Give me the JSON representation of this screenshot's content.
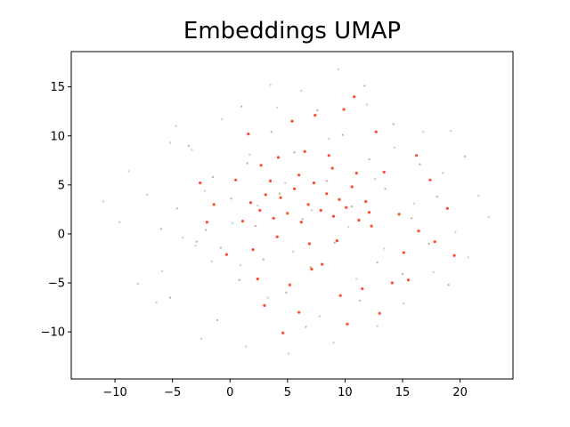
{
  "chart_data": {
    "type": "scatter",
    "title": "Embeddings UMAP",
    "xlabel": "",
    "ylabel": "",
    "xlim": [
      -13.8,
      24.6
    ],
    "ylim": [
      -14.8,
      18.6
    ],
    "xticks": [
      -10,
      -5,
      0,
      5,
      10,
      15,
      20
    ],
    "yticks": [
      -10,
      -5,
      0,
      5,
      10,
      15
    ],
    "xtick_labels": [
      "−10",
      "−5",
      "0",
      "5",
      "10",
      "15",
      "20"
    ],
    "ytick_labels": [
      "−10",
      "−5",
      "0",
      "5",
      "10",
      "15"
    ],
    "grid": false,
    "series": [
      {
        "color": "#a8c6d6",
        "points": [
          [
            -11.0,
            3.3
          ],
          [
            -9.6,
            1.2
          ],
          [
            -8.0,
            -5.1
          ],
          [
            -6.4,
            -7.0
          ],
          [
            -5.2,
            9.3
          ],
          [
            -4.1,
            -0.4
          ],
          [
            -3.3,
            8.6
          ],
          [
            -3.0,
            -1.2
          ],
          [
            -2.2,
            4.4
          ],
          [
            -1.6,
            -2.8
          ],
          [
            -0.7,
            11.7
          ],
          [
            0.2,
            1.1
          ],
          [
            0.9,
            -3.2
          ],
          [
            1.7,
            8.1
          ],
          [
            2.4,
            2.9
          ],
          [
            3.3,
            -6.5
          ],
          [
            4.1,
            12.9
          ],
          [
            4.8,
            5.2
          ],
          [
            5.5,
            -1.8
          ],
          [
            6.2,
            14.6
          ],
          [
            7.1,
            2.4
          ],
          [
            7.8,
            -8.4
          ],
          [
            8.6,
            9.7
          ],
          [
            9.4,
            16.8
          ],
          [
            10.3,
            0.7
          ],
          [
            11.0,
            -4.6
          ],
          [
            11.9,
            13.2
          ],
          [
            12.6,
            5.6
          ],
          [
            13.4,
            -1.5
          ],
          [
            14.3,
            8.8
          ],
          [
            15.1,
            -7.1
          ],
          [
            16.0,
            3.1
          ],
          [
            16.8,
            10.4
          ],
          [
            17.7,
            -3.9
          ],
          [
            18.5,
            6.2
          ],
          [
            19.6,
            0.2
          ],
          [
            20.7,
            -2.4
          ],
          [
            21.6,
            3.9
          ],
          [
            22.5,
            1.7
          ],
          [
            -7.2,
            4.0
          ],
          [
            -5.9,
            -3.8
          ],
          [
            -2.5,
            -10.7
          ],
          [
            1.4,
            -11.5
          ],
          [
            5.1,
            -12.2
          ],
          [
            9.0,
            -11.1
          ],
          [
            12.8,
            -9.4
          ],
          [
            3.5,
            15.2
          ],
          [
            -4.7,
            11.0
          ],
          [
            19.2,
            10.5
          ],
          [
            -8.8,
            6.4
          ]
        ]
      },
      {
        "color": "#b89a7c",
        "points": [
          [
            -3.6,
            9.0
          ],
          [
            -2.9,
            -0.8
          ],
          [
            -2.1,
            0.4
          ],
          [
            -1.5,
            5.8
          ],
          [
            -0.8,
            -1.4
          ],
          [
            0.1,
            3.6
          ],
          [
            0.8,
            -4.7
          ],
          [
            1.5,
            7.2
          ],
          [
            2.2,
            0.8
          ],
          [
            2.9,
            -2.6
          ],
          [
            3.6,
            10.4
          ],
          [
            4.3,
            4.1
          ],
          [
            4.9,
            -6.0
          ],
          [
            5.6,
            8.3
          ],
          [
            6.3,
            1.5
          ],
          [
            7.0,
            -3.4
          ],
          [
            7.6,
            12.6
          ],
          [
            8.4,
            5.4
          ],
          [
            9.1,
            -0.9
          ],
          [
            9.8,
            10.1
          ],
          [
            10.6,
            2.8
          ],
          [
            11.3,
            -6.8
          ],
          [
            12.1,
            7.6
          ],
          [
            12.8,
            -2.9
          ],
          [
            13.5,
            4.6
          ],
          [
            14.2,
            11.2
          ],
          [
            15.0,
            -4.1
          ],
          [
            15.8,
            1.6
          ],
          [
            16.5,
            7.1
          ],
          [
            17.3,
            -1.0
          ],
          [
            18.0,
            3.8
          ],
          [
            19.0,
            -5.2
          ],
          [
            -6.0,
            0.5
          ],
          [
            -4.6,
            2.6
          ],
          [
            -5.2,
            -6.5
          ],
          [
            1.0,
            13.0
          ],
          [
            6.6,
            -9.5
          ],
          [
            11.7,
            15.1
          ],
          [
            -1.1,
            -8.8
          ],
          [
            20.4,
            7.9
          ]
        ]
      },
      {
        "color": "#ff3a16",
        "points": [
          [
            1.8,
            3.2
          ],
          [
            2.6,
            2.4
          ],
          [
            3.1,
            4.0
          ],
          [
            3.8,
            1.6
          ],
          [
            4.4,
            3.7
          ],
          [
            5.0,
            2.1
          ],
          [
            5.6,
            4.6
          ],
          [
            6.2,
            1.2
          ],
          [
            6.8,
            3.0
          ],
          [
            7.3,
            5.2
          ],
          [
            7.9,
            2.4
          ],
          [
            8.4,
            4.1
          ],
          [
            9.0,
            1.8
          ],
          [
            9.5,
            3.5
          ],
          [
            10.1,
            2.7
          ],
          [
            10.6,
            4.8
          ],
          [
            11.2,
            1.4
          ],
          [
            11.8,
            3.3
          ],
          [
            12.3,
            0.8
          ],
          [
            4.2,
            7.8
          ],
          [
            6.5,
            8.4
          ],
          [
            8.6,
            8.0
          ],
          [
            9.9,
            12.7
          ],
          [
            7.4,
            12.1
          ],
          [
            13.4,
            6.3
          ],
          [
            14.7,
            2.0
          ],
          [
            15.1,
            -1.9
          ],
          [
            16.4,
            0.3
          ],
          [
            17.8,
            -0.8
          ],
          [
            8.0,
            -3.1
          ],
          [
            7.1,
            -3.6
          ],
          [
            5.2,
            -5.2
          ],
          [
            9.6,
            -6.3
          ],
          [
            11.5,
            -5.6
          ],
          [
            13.0,
            -8.1
          ],
          [
            14.1,
            -5.0
          ],
          [
            3.0,
            -7.3
          ],
          [
            1.1,
            1.3
          ],
          [
            -2.0,
            1.2
          ],
          [
            -1.4,
            3.0
          ],
          [
            0.5,
            5.5
          ],
          [
            2.7,
            7.0
          ],
          [
            -0.3,
            -2.1
          ],
          [
            2.4,
            -4.6
          ],
          [
            6.0,
            -8.0
          ],
          [
            10.2,
            -9.2
          ],
          [
            15.5,
            -4.7
          ],
          [
            18.9,
            2.6
          ],
          [
            16.2,
            8.0
          ],
          [
            12.7,
            10.4
          ],
          [
            10.8,
            14.0
          ],
          [
            5.4,
            11.5
          ],
          [
            1.6,
            10.2
          ],
          [
            -2.6,
            5.2
          ],
          [
            19.5,
            -2.2
          ],
          [
            17.4,
            5.5
          ],
          [
            4.6,
            -10.1
          ],
          [
            8.9,
            6.7
          ],
          [
            6.0,
            6.0
          ],
          [
            3.5,
            5.4
          ],
          [
            11.0,
            6.2
          ],
          [
            12.1,
            2.2
          ],
          [
            9.3,
            -0.7
          ],
          [
            6.9,
            -1.0
          ],
          [
            4.1,
            -0.3
          ],
          [
            2.0,
            -1.6
          ]
        ]
      }
    ]
  }
}
